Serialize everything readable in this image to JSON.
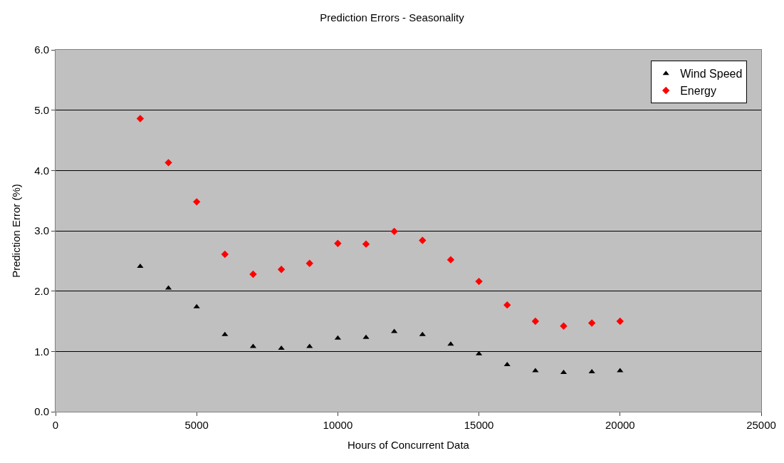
{
  "chart_data": {
    "type": "scatter",
    "title": "Prediction Errors - Seasonality",
    "xlabel": "Hours of Concurrent Data",
    "ylabel": "Prediction Error (%)",
    "x": [
      3000,
      4000,
      5000,
      6000,
      7000,
      8000,
      9000,
      10000,
      11000,
      12000,
      13000,
      14000,
      15000,
      16000,
      17000,
      18000,
      19000,
      20000
    ],
    "series": [
      {
        "name": "Wind Speed",
        "color": "#000000",
        "marker": "triangle",
        "values": [
          2.41,
          2.05,
          1.74,
          1.28,
          1.08,
          1.05,
          1.08,
          1.22,
          1.23,
          1.33,
          1.28,
          1.12,
          0.96,
          0.78,
          0.68,
          0.65,
          0.66,
          0.68
        ]
      },
      {
        "name": "Energy",
        "color": "#ff0000",
        "marker": "diamond",
        "values": [
          4.86,
          4.13,
          3.48,
          2.61,
          2.28,
          2.36,
          2.46,
          2.79,
          2.78,
          2.99,
          2.84,
          2.52,
          2.16,
          1.77,
          1.5,
          1.42,
          1.47,
          1.5
        ]
      }
    ],
    "xlim": [
      0,
      25000
    ],
    "xticks": [
      0,
      5000,
      10000,
      15000,
      20000,
      25000
    ],
    "ylim": [
      0,
      6
    ],
    "yticks": [
      {
        "value": 0,
        "label": "0.0"
      },
      {
        "value": 1,
        "label": "1.0"
      },
      {
        "value": 2,
        "label": "2.0"
      },
      {
        "value": 3,
        "label": "3.0"
      },
      {
        "value": 4,
        "label": "4.0"
      },
      {
        "value": 5,
        "label": "5.0"
      },
      {
        "value": 6,
        "label": "6.0"
      }
    ],
    "grid": "y",
    "legend": "top right"
  }
}
